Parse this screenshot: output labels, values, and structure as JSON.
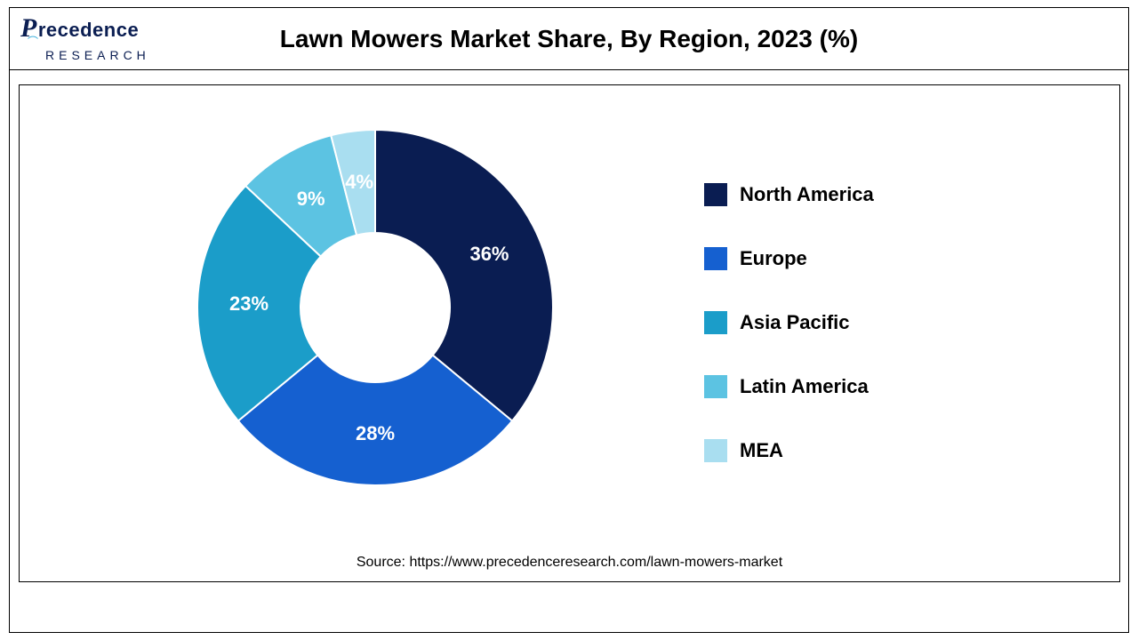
{
  "logo": {
    "line1_rest": "recedence",
    "line2": "RESEARCH",
    "primary_color": "#0b1e52",
    "accent_color": "#2aa8d8"
  },
  "chart": {
    "type": "donut",
    "title": "Lawn Mowers Market Share, By Region, 2023 (%)",
    "background_color": "#ffffff",
    "border_color": "#000000",
    "inner_radius_ratio": 0.42,
    "title_fontsize": 28,
    "title_fontweight": 700,
    "label_fontsize": 22,
    "label_fontweight": 700,
    "label_color": "#ffffff",
    "legend_fontsize": 22,
    "legend_fontweight": 700,
    "legend_color": "#000000",
    "segments": [
      {
        "name": "North America",
        "value": 36,
        "label": "36%",
        "color": "#0a1d52"
      },
      {
        "name": "Europe",
        "value": 28,
        "label": "28%",
        "color": "#1560d0"
      },
      {
        "name": "Asia Pacific",
        "value": 23,
        "label": "23%",
        "color": "#1b9dc9"
      },
      {
        "name": "Latin America",
        "value": 9,
        "label": "9%",
        "color": "#5cc3e2"
      },
      {
        "name": "MEA",
        "value": 4,
        "label": "4%",
        "color": "#a9def0"
      }
    ]
  },
  "source": {
    "prefix": "Source: ",
    "url_text": "https://www.precedenceresearch.com/lawn-mowers-market",
    "fontsize": 16,
    "color": "#000000"
  }
}
